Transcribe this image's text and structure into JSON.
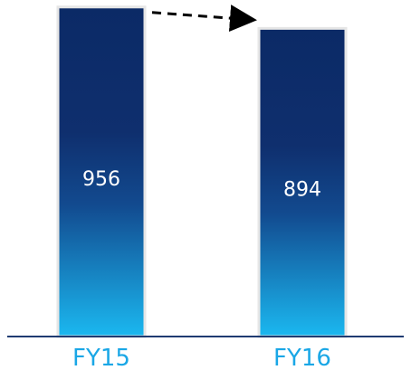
{
  "chart_data": {
    "type": "bar",
    "categories": [
      "FY15",
      "FY16"
    ],
    "values": [
      956,
      894
    ],
    "title": "",
    "xlabel": "",
    "ylabel": "",
    "ylim": [
      0,
      1000
    ],
    "grid": false,
    "annotations": [
      "arrow from FY15 bar to FY16 bar (decline)"
    ],
    "colors": {
      "bar_top": "#0b2a66",
      "bar_mid": "#123f80",
      "bar_bottom": "#1bb8f0",
      "bar_edge": "#e6e6e6",
      "axis": "#1f3b72",
      "tick_label": "#1aa7e6",
      "arrow": "#000000"
    }
  }
}
